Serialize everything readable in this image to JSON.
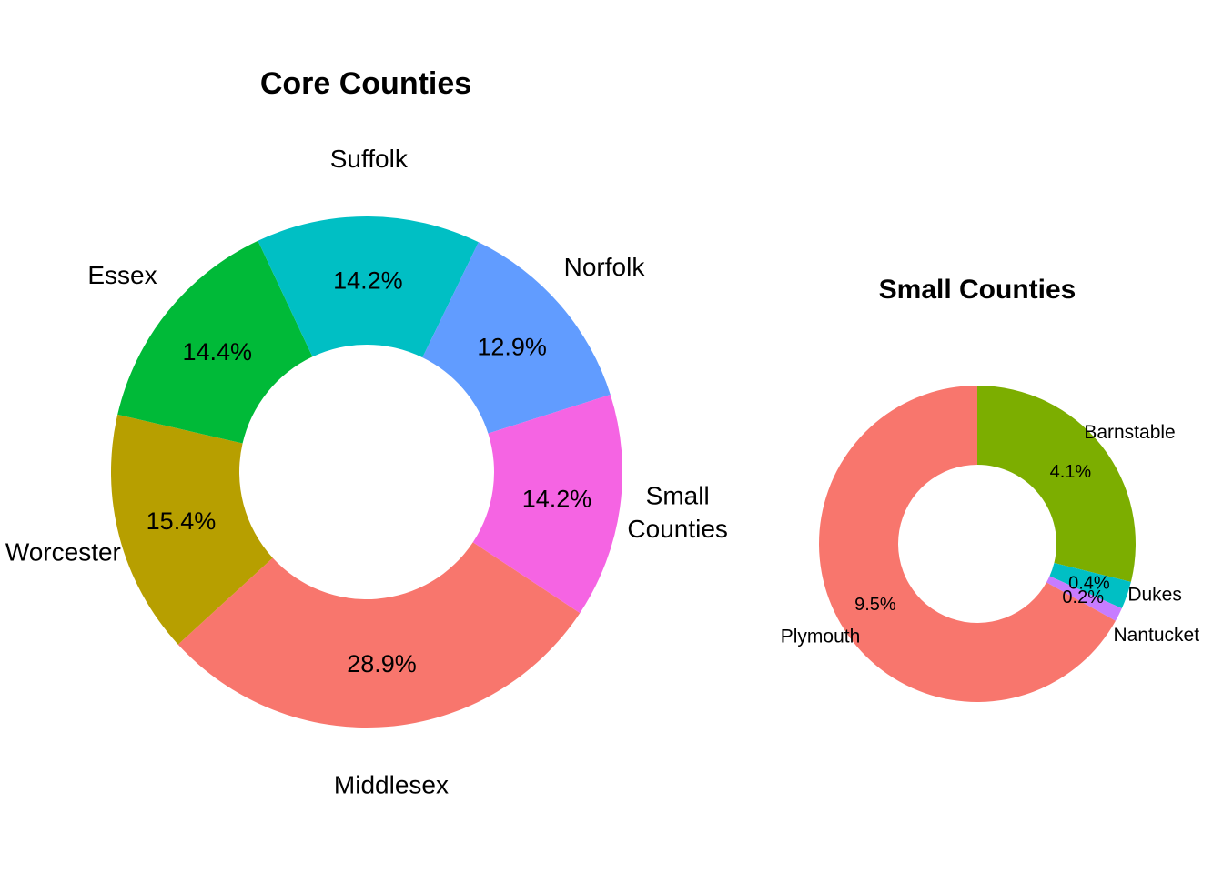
{
  "chart_data": [
    {
      "type": "pie",
      "title": "Core Counties",
      "slices": [
        {
          "label": "Middlesex",
          "value": 28.9,
          "pct_label": "28.9%",
          "color": "#F8766D"
        },
        {
          "label": "Worcester",
          "value": 15.4,
          "pct_label": "15.4%",
          "color": "#B79F00"
        },
        {
          "label": "Essex",
          "value": 14.4,
          "pct_label": "14.4%",
          "color": "#00BA38"
        },
        {
          "label": "Suffolk",
          "value": 14.2,
          "pct_label": "14.2%",
          "color": "#00BFC4"
        },
        {
          "label": "Norfolk",
          "value": 12.9,
          "pct_label": "12.9%",
          "color": "#619CFF"
        },
        {
          "label": "Small Counties",
          "value": 14.2,
          "pct_label": "14.2%",
          "color": "#F564E3"
        }
      ]
    },
    {
      "type": "pie",
      "title": "Small Counties",
      "slices": [
        {
          "label": "Barnstable",
          "value": 4.1,
          "pct_label": "4.1%",
          "color": "#7CAE00"
        },
        {
          "label": "Dukes",
          "value": 0.4,
          "pct_label": "0.4%",
          "color": "#00BFC4"
        },
        {
          "label": "Nantucket",
          "value": 0.2,
          "pct_label": "0.2%",
          "color": "#C77CFF"
        },
        {
          "label": "Plymouth",
          "value": 9.5,
          "pct_label": "9.5%",
          "color": "#F8766D"
        }
      ]
    }
  ]
}
